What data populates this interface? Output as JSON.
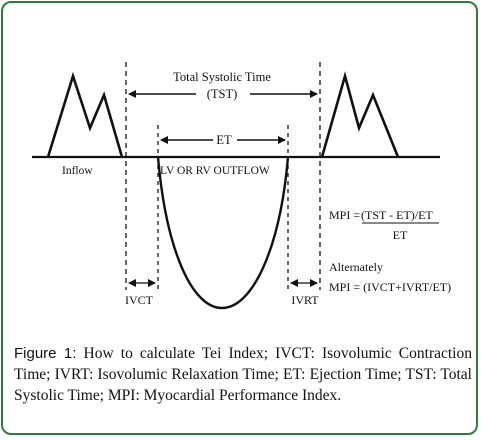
{
  "diagram": {
    "tst_label": "Total Systolic Time",
    "tst_abbr": "(TST)",
    "et_label": "ET",
    "inflow_label": "Inflow",
    "outflow_label": "LV OR RV OUTFLOW",
    "ivct_label": "IVCT",
    "ivrt_label": "IVRT",
    "mpi_prefix": "MPI =",
    "mpi_numerator": "(TST - ET)/ET",
    "mpi_denominator": "ET",
    "alternately_label": "Alternately",
    "mpi_alt": "MPI = (IVCT+IVRT/ET)"
  },
  "caption": {
    "label": "Figure 1:",
    "text": " How to calculate Tei Index; IVCT: Isovolumic Contraction Time; IVRT: Isovolumic Relaxation Time; ET: Ejection Time; TST: Total Systolic Time; MPI: Myocardial Performance Index."
  },
  "colors": {
    "border": "#2f7d3a",
    "ink": "#111111"
  }
}
